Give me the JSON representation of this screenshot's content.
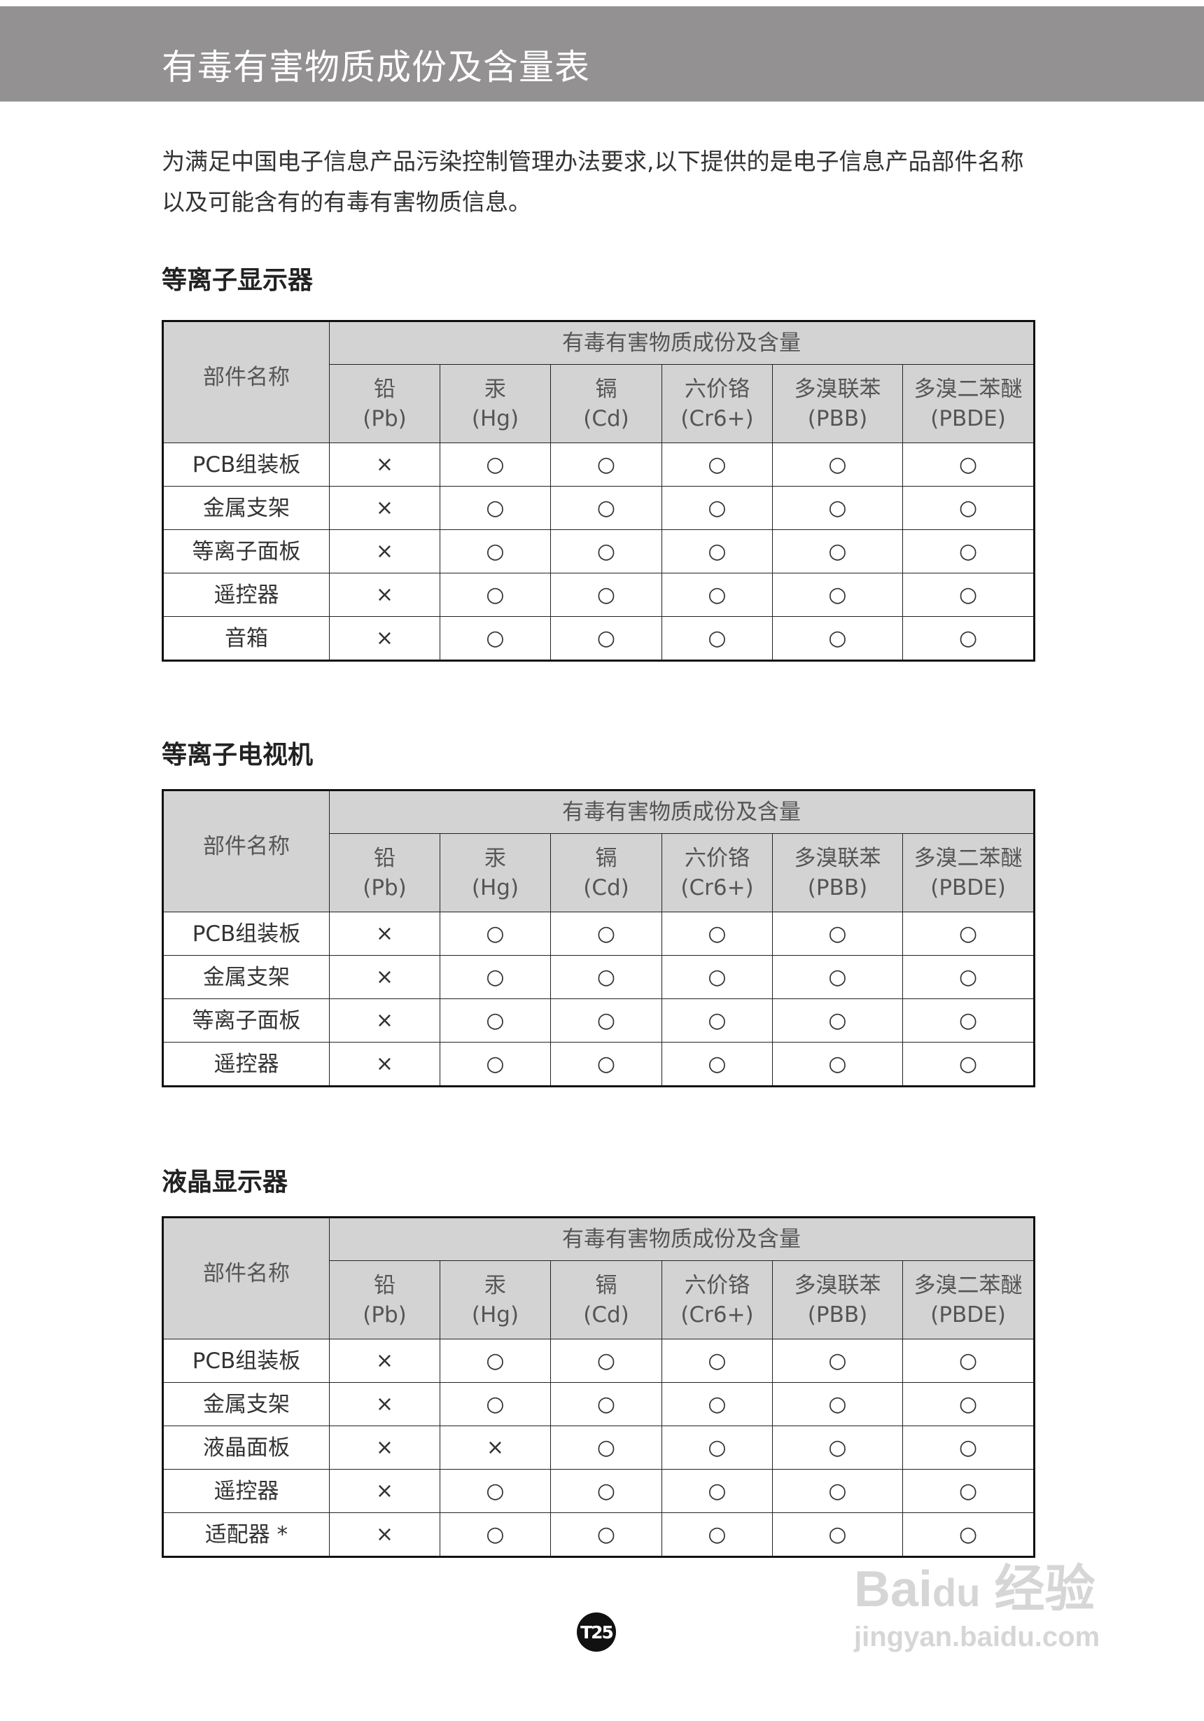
{
  "header": {
    "title": "有毒有害物质成份及含量表"
  },
  "intro": "为满足中国电子信息产品污染控制管理办法要求,以下提供的是电子信息产品部件名称以及可能含有的有毒有害物质信息。",
  "table_header": {
    "part_name": "部件名称",
    "group": "有毒有害物质成份及含量",
    "substances": [
      {
        "name": "铅",
        "symbol": "(Pb)"
      },
      {
        "name": "汞",
        "symbol": "(Hg)"
      },
      {
        "name": "镉",
        "symbol": "(Cd)"
      },
      {
        "name": "六价铬",
        "symbol": "(Cr6+)"
      },
      {
        "name": "多溴联苯",
        "symbol": "(PBB)"
      },
      {
        "name": "多溴二苯醚",
        "symbol": "(PBDE)"
      }
    ]
  },
  "sections": [
    {
      "title": "等离子显示器",
      "rows": [
        {
          "part": "PCB组装板",
          "values": [
            "×",
            "○",
            "○",
            "○",
            "○",
            "○"
          ]
        },
        {
          "part": "金属支架",
          "values": [
            "×",
            "○",
            "○",
            "○",
            "○",
            "○"
          ]
        },
        {
          "part": "等离子面板",
          "values": [
            "×",
            "○",
            "○",
            "○",
            "○",
            "○"
          ]
        },
        {
          "part": "遥控器",
          "values": [
            "×",
            "○",
            "○",
            "○",
            "○",
            "○"
          ]
        },
        {
          "part": "音箱",
          "values": [
            "×",
            "○",
            "○",
            "○",
            "○",
            "○"
          ]
        }
      ]
    },
    {
      "title": "等离子电视机",
      "rows": [
        {
          "part": "PCB组装板",
          "values": [
            "×",
            "○",
            "○",
            "○",
            "○",
            "○"
          ]
        },
        {
          "part": "金属支架",
          "values": [
            "×",
            "○",
            "○",
            "○",
            "○",
            "○"
          ]
        },
        {
          "part": "等离子面板",
          "values": [
            "×",
            "○",
            "○",
            "○",
            "○",
            "○"
          ]
        },
        {
          "part": "遥控器",
          "values": [
            "×",
            "○",
            "○",
            "○",
            "○",
            "○"
          ]
        }
      ]
    },
    {
      "title": "液晶显示器",
      "rows": [
        {
          "part": "PCB组装板",
          "values": [
            "×",
            "○",
            "○",
            "○",
            "○",
            "○"
          ]
        },
        {
          "part": "金属支架",
          "values": [
            "×",
            "○",
            "○",
            "○",
            "○",
            "○"
          ]
        },
        {
          "part": "液晶面板",
          "values": [
            "×",
            "×",
            "○",
            "○",
            "○",
            "○"
          ]
        },
        {
          "part": "遥控器",
          "values": [
            "×",
            "○",
            "○",
            "○",
            "○",
            "○"
          ]
        },
        {
          "part": "适配器 *",
          "values": [
            "×",
            "○",
            "○",
            "○",
            "○",
            "○"
          ]
        }
      ]
    }
  ],
  "page_number": "T25",
  "watermark": {
    "brand": "Bai du 经验",
    "url": "jingyan.baidu.com"
  },
  "colors": {
    "header_band": "#939192",
    "table_header_bg": "#d3d3d3"
  }
}
